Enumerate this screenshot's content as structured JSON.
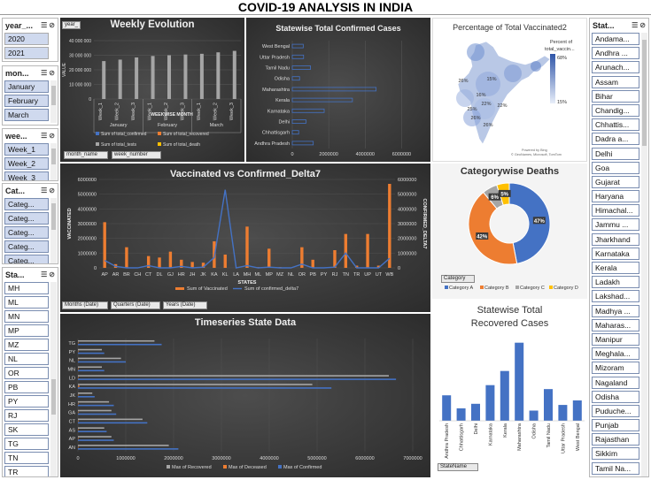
{
  "page_title": "COVID-19 ANALYSIS IN INDIA",
  "slicers": {
    "year": {
      "title": "year_...",
      "items": [
        "2020",
        "2021"
      ]
    },
    "month": {
      "title": "mon...",
      "items": [
        "January",
        "February",
        "March"
      ]
    },
    "week": {
      "title": "wee...",
      "items": [
        "Week_1",
        "Week_2",
        "Week_3"
      ]
    },
    "category": {
      "title": "Cat...",
      "items": [
        "Categ...",
        "Categ...",
        "Categ...",
        "Categ...",
        "Categ..."
      ]
    },
    "state_code": {
      "title": "Sta...",
      "items": [
        "MH",
        "ML",
        "MN",
        "MP",
        "MZ",
        "NL",
        "OR",
        "PB",
        "PY",
        "RJ",
        "SK",
        "TG",
        "TN",
        "TR"
      ]
    },
    "state_name": {
      "title": "Stat...",
      "items": [
        "Andama...",
        "Andhra ...",
        "Arunach...",
        "Assam",
        "Bihar",
        "Chandig...",
        "Chhattis...",
        "Dadra a...",
        "Delhi",
        "Goa",
        "Gujarat",
        "Haryana",
        "Himachal...",
        "Jammu ...",
        "Jharkhand",
        "Karnataka",
        "Kerala",
        "Ladakh",
        "Lakshad...",
        "Madhya ...",
        "Maharas...",
        "Manipur",
        "Meghala...",
        "Mizoram",
        "Nagaland",
        "Odisha",
        "Puduche...",
        "Punjab",
        "Rajasthan",
        "Sikkim",
        "Tamil Na..."
      ]
    }
  },
  "weekly": {
    "filters": [
      "year_",
      "month_name",
      "week_number"
    ],
    "axis_title": "WEEKWISE MONTH",
    "ylabel": "VALUE",
    "yticks": [
      "0",
      "10 000 000",
      "20 000 000",
      "30 000 000",
      "40 000 000"
    ],
    "legend": [
      "Sum of total_confirmed",
      "Sum of total_recovered",
      "Sum of total_tests",
      "Sum of total_death"
    ]
  },
  "vax": {
    "filters": [
      "Months (Date)",
      "Quarters (Date)",
      "Years (Date)"
    ],
    "xlabel": "STATES",
    "ylabel_left": "VACCINATED",
    "ylabel_right": "CONFIRMED_DELTA7",
    "legend": [
      "Sum of Vaccinated",
      "Sum of confirmed_delta7"
    ]
  },
  "confirmed_panel": {
    "xticks": [
      "0",
      "2000000",
      "4000000",
      "6000000"
    ]
  },
  "timeseries": {
    "legend": [
      "Max of Recovered",
      "Max of Deceased",
      "Max of Confirmed"
    ]
  },
  "map": {
    "legend_title": [
      "Percent of",
      "total_vaccin..."
    ],
    "legend_max": "68%",
    "legend_min": "15%",
    "labels": [
      {
        "t": "15%"
      },
      {
        "t": "26%"
      },
      {
        "t": "16%"
      },
      {
        "t": "22%"
      },
      {
        "t": "25%"
      },
      {
        "t": "26%"
      },
      {
        "t": "22%"
      },
      {
        "t": "26%"
      }
    ],
    "credit": "Powered by Bing",
    "credit2": "© GeoNames, Microsoft, TomTom"
  },
  "recovered": {
    "filter": "StateName"
  },
  "chart_data": [
    {
      "type": "bar",
      "title": "Weekly Evolution",
      "xlabel": "WEEKWISE MONTH",
      "ylabel": "VALUE",
      "groups": [
        "January",
        "February",
        "March"
      ],
      "categories": [
        "Week_1",
        "Week_2",
        "Week_3",
        "Week_1",
        "Week_2",
        "Week_3",
        "Week_1",
        "Week_2",
        "Week_3"
      ],
      "series": [
        {
          "name": "Sum of total_confirmed",
          "values": [
            0,
            0,
            0,
            0,
            0,
            0,
            0,
            0,
            0
          ]
        },
        {
          "name": "Sum of total_recovered",
          "values": [
            0,
            0,
            0,
            0,
            0,
            0,
            0,
            0,
            0
          ]
        },
        {
          "name": "Sum of total_tests",
          "values": [
            26000000,
            27000000,
            28500000,
            29500000,
            30000000,
            30500000,
            31000000,
            32000000,
            33000000
          ]
        },
        {
          "name": "Sum of total_death",
          "values": [
            0,
            0,
            0,
            0,
            0,
            0,
            0,
            0,
            0
          ]
        }
      ],
      "ylim": [
        0,
        40000000
      ],
      "colors": [
        "#4472c4",
        "#ed7d31",
        "#a5a5a5",
        "#ffc000"
      ]
    },
    {
      "type": "bar",
      "orientation": "horizontal",
      "title": "Statewise Total Confirmed Cases",
      "categories": [
        "West Bengal",
        "Uttar Pradesh",
        "Tamil Nadu",
        "Odisha",
        "Maharashtra",
        "Kerala",
        "Karnataka",
        "Delhi",
        "Chhattisgarh",
        "Andhra Pradesh"
      ],
      "values": [
        600000,
        620000,
        1000000,
        400000,
        4600000,
        3300000,
        1750000,
        750000,
        350000,
        1150000
      ],
      "xlim": [
        0,
        7000000
      ]
    },
    {
      "type": "bar+line",
      "title": "Vaccinated vs Confirmed_Delta7",
      "xlabel": "STATES",
      "categories": [
        "AP",
        "AR",
        "BR",
        "CH",
        "CT",
        "DL",
        "GJ",
        "HR",
        "JH",
        "JK",
        "KA",
        "KL",
        "LA",
        "MH",
        "ML",
        "MP",
        "MZ",
        "NL",
        "OR",
        "PB",
        "PY",
        "RJ",
        "TN",
        "TR",
        "UP",
        "UT",
        "WB"
      ],
      "series": [
        {
          "name": "Sum of Vaccinated",
          "axis": "left",
          "values": [
            3100000,
            250000,
            1400000,
            0,
            800000,
            700000,
            1100000,
            550000,
            400000,
            350000,
            1800000,
            900000,
            0,
            2800000,
            50000,
            1300000,
            50000,
            0,
            1400000,
            550000,
            0,
            1200000,
            2300000,
            150000,
            2300000,
            150000,
            5700000
          ]
        },
        {
          "name": "Sum of confirmed_delta7",
          "axis": "right",
          "values": [
            500000,
            100000,
            0,
            0,
            150000,
            0,
            0,
            100000,
            0,
            50000,
            700000,
            5300000,
            0,
            150000,
            0,
            50000,
            0,
            0,
            250000,
            0,
            0,
            50000,
            1000000,
            0,
            0,
            0,
            650000
          ]
        }
      ],
      "ylim_left": [
        0,
        6000000
      ],
      "ylim_right": [
        0,
        6000000
      ],
      "colors": [
        "#ed7d31",
        "#4472c4"
      ]
    },
    {
      "type": "pie",
      "title": "Categorywise Deaths",
      "filter": "Category",
      "categories": [
        "Category A",
        "Category B",
        "Category C",
        "Category D"
      ],
      "values": [
        47,
        42,
        6,
        5
      ],
      "colors": [
        "#4472c4",
        "#ed7d31",
        "#a5a5a5",
        "#ffc000"
      ]
    },
    {
      "type": "bar",
      "orientation": "horizontal",
      "title": "Timeseries State Data",
      "categories": [
        "AN",
        "AP",
        "AS",
        "CT",
        "GA",
        "HR",
        "JK",
        "KA",
        "LD",
        "MN",
        "NL",
        "PY",
        "TG"
      ],
      "series": [
        {
          "name": "Max of Recovered",
          "values": [
            1900000,
            700000,
            550000,
            1350000,
            700000,
            650000,
            300000,
            4900000,
            6500000,
            500000,
            900000,
            500000,
            1600000
          ]
        },
        {
          "name": "Max of Deceased",
          "values": [
            10000,
            5000,
            5000,
            10000,
            5000,
            5000,
            3000,
            30000,
            10000,
            3000,
            2000,
            2000,
            5000
          ]
        },
        {
          "name": "Max of Confirmed",
          "values": [
            2100000,
            750000,
            600000,
            1450000,
            800000,
            750000,
            350000,
            5300000,
            6650000,
            550000,
            1000000,
            550000,
            1750000
          ]
        }
      ],
      "xticks": [
        0,
        1000000,
        2000000,
        3000000,
        4000000,
        5000000,
        6000000,
        7000000
      ],
      "xlim": [
        0,
        7000000
      ],
      "colors": [
        "#a5a5a5",
        "#ed7d31",
        "#4472c4"
      ]
    },
    {
      "type": "bar",
      "title": [
        "Statewise Total",
        "Recovered Cases"
      ],
      "categories": [
        "Andhra Pradesh",
        "Chhattisgarh",
        "Delhi",
        "Karnataka",
        "Kerala",
        "Maharashtra",
        "Odisha",
        "Tamil Nadu",
        "Uttar Pradesh",
        "West Bengal"
      ],
      "values": [
        45,
        22,
        30,
        63,
        88,
        138,
        18,
        56,
        28,
        36
      ],
      "ylim": [
        0,
        150
      ]
    }
  ]
}
